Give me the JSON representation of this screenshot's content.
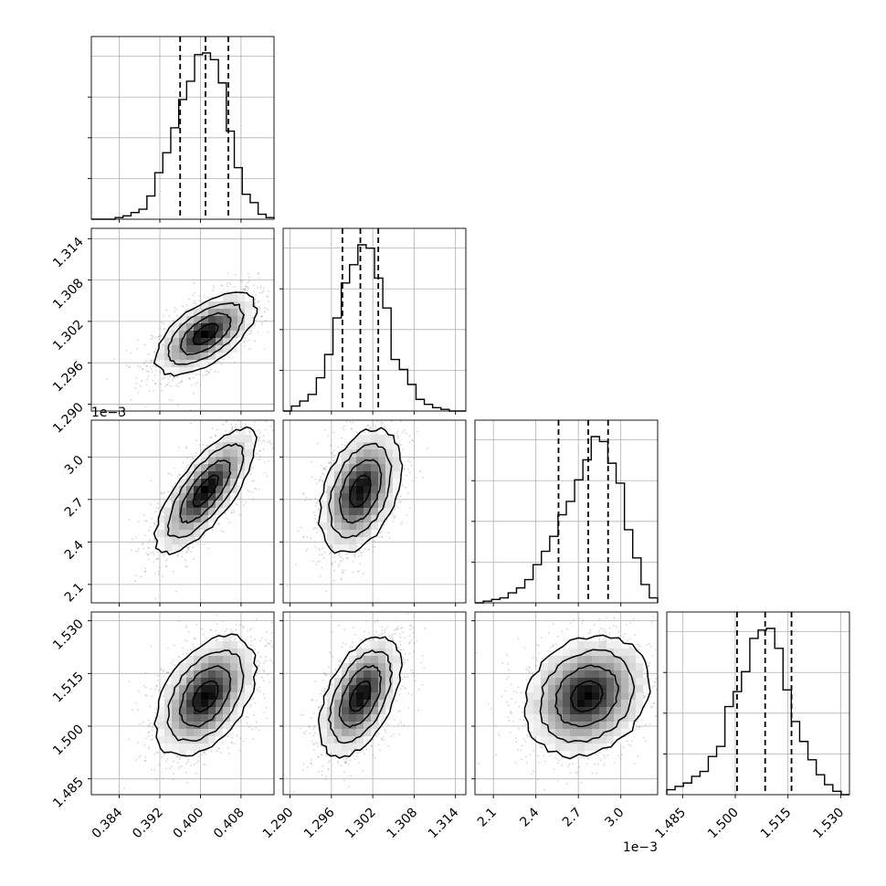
{
  "chart_data": {
    "type": "corner",
    "grid": true,
    "parameters": [
      {
        "index": 0,
        "range": [
          0.3785,
          0.4145
        ],
        "ticks": [
          0.384,
          0.392,
          0.4,
          0.408
        ],
        "tick_labels": [
          "0.384",
          "0.392",
          "0.400",
          "0.408"
        ],
        "offset_label": "",
        "quantiles": [
          0.396,
          0.401,
          0.4055
        ],
        "center": 0.401,
        "sd": 0.0045
      },
      {
        "index": 1,
        "range": [
          1.289,
          1.3155
        ],
        "ticks": [
          1.29,
          1.296,
          1.302,
          1.308,
          1.314
        ],
        "tick_labels": [
          "1.290",
          "1.296",
          "1.302",
          "1.308",
          "1.314"
        ],
        "offset_label": "",
        "quantiles": [
          1.2976,
          1.3002,
          1.3028
        ],
        "center": 1.3002,
        "sd": 0.0027
      },
      {
        "index": 2,
        "range": [
          1.97,
          3.26
        ],
        "ticks": [
          2.1,
          2.4,
          2.7,
          3.0
        ],
        "tick_labels": [
          "2.1",
          "2.4",
          "2.7",
          "3.0"
        ],
        "offset_label": "1e−3",
        "quantiles": [
          2.56,
          2.77,
          2.91
        ],
        "center": 2.76,
        "sd": 0.2
      },
      {
        "index": 3,
        "range": [
          1.4805,
          1.5325
        ],
        "ticks": [
          1.485,
          1.5,
          1.515,
          1.53
        ],
        "tick_labels": [
          "1.485",
          "1.500",
          "1.515",
          "1.530"
        ],
        "offset_label": "",
        "quantiles": [
          1.5005,
          1.5085,
          1.516
        ],
        "center": 1.5085,
        "sd": 0.0078
      }
    ],
    "histograms": [
      [
        0.0,
        0.0,
        0.0,
        0.01,
        0.02,
        0.04,
        0.06,
        0.14,
        0.28,
        0.4,
        0.55,
        0.72,
        0.83,
        0.99,
        1.0,
        0.96,
        0.82,
        0.53,
        0.31,
        0.15,
        0.1,
        0.03,
        0.01
      ],
      [
        0.0,
        0.03,
        0.06,
        0.1,
        0.2,
        0.34,
        0.56,
        0.77,
        0.88,
        1.0,
        0.98,
        0.8,
        0.62,
        0.31,
        0.25,
        0.16,
        0.07,
        0.04,
        0.02,
        0.01,
        0.0,
        0.0
      ],
      [
        0.0,
        0.01,
        0.02,
        0.03,
        0.06,
        0.09,
        0.14,
        0.23,
        0.31,
        0.4,
        0.53,
        0.61,
        0.74,
        0.86,
        1.0,
        0.97,
        0.84,
        0.72,
        0.44,
        0.27,
        0.11,
        0.03
      ],
      [
        0.03,
        0.05,
        0.07,
        0.11,
        0.14,
        0.23,
        0.29,
        0.53,
        0.62,
        0.74,
        0.94,
        0.99,
        1.0,
        0.88,
        0.63,
        0.44,
        0.32,
        0.21,
        0.12,
        0.06,
        0.02,
        0.0
      ]
    ],
    "pairs": [
      {
        "row": 1,
        "col": 0,
        "corr": 0.6
      },
      {
        "row": 2,
        "col": 0,
        "corr": 0.75
      },
      {
        "row": 2,
        "col": 1,
        "corr": 0.4
      },
      {
        "row": 3,
        "col": 0,
        "corr": 0.45
      },
      {
        "row": 3,
        "col": 1,
        "corr": 0.5
      },
      {
        "row": 3,
        "col": 2,
        "corr": 0.2
      }
    ],
    "contour_levels_sigma": [
      0.5,
      1.0,
      1.5,
      2.0
    ],
    "colors": {
      "line": "#000000",
      "grid": "#b0b0b0",
      "scatter": "#888888",
      "density_max": "#000000",
      "background": "#ffffff"
    }
  }
}
